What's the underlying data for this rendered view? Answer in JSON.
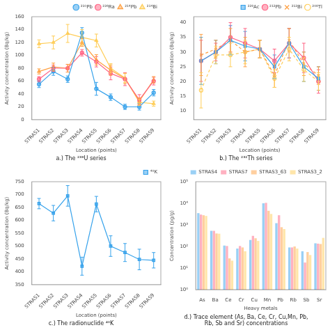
{
  "chart_data": [
    {
      "type": "line",
      "title": "a.) The ²³⁸U series",
      "xlabel": "Location (points)",
      "ylabel": "Activity concentration (Bq/kg)",
      "categories": [
        "STRAS1",
        "STRAS2",
        "STRAS3",
        "STRAS4",
        "STRAS5",
        "STRAS6",
        "STRAS7",
        "STRAS8",
        "STRAS9"
      ],
      "ylim": [
        0,
        160
      ],
      "yticks": [
        0,
        20,
        40,
        60,
        80,
        100,
        120,
        140,
        160
      ],
      "grid": false,
      "legend": "upper right",
      "series": [
        {
          "name": "²¹⁰Pb",
          "values": [
            55,
            75,
            63,
            135,
            48,
            35,
            20,
            20,
            42
          ],
          "errors": [
            5,
            6,
            5,
            8,
            10,
            5,
            4,
            5,
            5
          ],
          "marker": "circle",
          "line_style": "solid"
        },
        {
          "name": "²²⁶Ra",
          "values": [
            63,
            80,
            80,
            104,
            90,
            72,
            63,
            31,
            60
          ],
          "errors": [
            4,
            5,
            6,
            5,
            8,
            10,
            10,
            8,
            6
          ],
          "marker": "circle",
          "line_style": "solid"
        },
        {
          "name": "²¹⁴Pb",
          "values": [
            75,
            82,
            80,
            120,
            93,
            77,
            64,
            29,
            62
          ],
          "errors": [
            4,
            6,
            6,
            6,
            8,
            8,
            8,
            5,
            5
          ],
          "marker": "triangle",
          "line_style": "solid"
        },
        {
          "name": "²¹⁴Bi",
          "values": [
            118,
            120,
            134,
            128,
            123,
            80,
            65,
            27,
            25
          ],
          "errors": [
            6,
            10,
            14,
            12,
            10,
            7,
            7,
            5,
            4
          ],
          "marker": "triangle",
          "line_style": "solid"
        }
      ]
    },
    {
      "type": "line",
      "title": "b.) The ²³²Th series",
      "xlabel": "Location (points)",
      "ylabel": "Activity concentration (Bq/kg)",
      "categories": [
        "STRAS1",
        "STRAS2",
        "STRAS3",
        "STRAS4",
        "STRAS5",
        "STRAS6",
        "STRAS7",
        "STRAS8",
        "STRAS9"
      ],
      "ylim": [
        7,
        42
      ],
      "yticks": [
        10,
        15,
        20,
        25,
        30,
        35,
        40
      ],
      "grid": false,
      "legend": "upper right",
      "series": [
        {
          "name": "²²⁸Ac",
          "values": [
            27,
            30,
            34,
            32,
            31,
            25,
            33,
            25,
            21
          ],
          "errors": [
            8,
            4,
            5,
            5,
            3,
            4,
            5,
            5,
            4
          ],
          "marker": "square",
          "line_style": "solid"
        },
        {
          "name": "²¹²Pb",
          "values": [
            27,
            30,
            35,
            33,
            31,
            27,
            33,
            28,
            20
          ],
          "errors": [
            7,
            3,
            5,
            5,
            3,
            4,
            5,
            5,
            4
          ],
          "marker": "circle",
          "line_style": "solid"
        },
        {
          "name": "²¹²Bi",
          "values": [
            29,
            31,
            34,
            30,
            31,
            22,
            34,
            26,
            22
          ],
          "errors": [
            7,
            3,
            4,
            5,
            3,
            4,
            4,
            4,
            3
          ],
          "marker": "x",
          "line_style": "dashed"
        },
        {
          "name": "²⁰⁸Tl",
          "values": [
            17,
            29,
            29,
            30,
            31,
            21,
            31,
            24,
            20
          ],
          "errors": [
            6,
            3,
            4,
            4,
            3,
            3,
            4,
            4,
            3
          ],
          "marker": "open_circle",
          "line_style": "dashed"
        }
      ]
    },
    {
      "type": "line",
      "title": "c.) The radionuclide ⁴⁰K",
      "xlabel": "Location (points)",
      "ylabel": "Activity concentration (Bq/kg)",
      "categories": [
        "STRAS1",
        "STRAS2",
        "STRAS3",
        "STRAS4",
        "STRAS5",
        "STRAS6",
        "STRAS7",
        "STRAS8",
        "STRAS9"
      ],
      "ylim": [
        350,
        750
      ],
      "yticks": [
        350,
        400,
        450,
        500,
        550,
        600,
        650,
        700,
        750
      ],
      "grid": false,
      "legend": "upper right",
      "series": [
        {
          "name": "⁴⁰K",
          "values": [
            665,
            628,
            695,
            422,
            663,
            500,
            475,
            448,
            445
          ],
          "errors": [
            20,
            30,
            40,
            35,
            30,
            40,
            35,
            40,
            30
          ],
          "marker": "square",
          "line_style": "solid"
        }
      ]
    },
    {
      "type": "bar",
      "title": "d.) Trace element (As, Ba, Ce, Cr, Cu,Mn, Pb,\nRb, Sb and Sr) concentrations",
      "xlabel": "Heavy metals",
      "ylabel": "Concentration (pg/g)",
      "categories": [
        "As",
        "Ba",
        "Ce",
        "Cr",
        "Cu",
        "Mn",
        "Pb",
        "Rb",
        "Sb",
        "Sr"
      ],
      "log": "y",
      "ylim": [
        1,
        100000
      ],
      "yticks": [
        {
          "value": 1,
          "label": "10⁰"
        },
        {
          "value": 10,
          "label": "10¹"
        },
        {
          "value": 100,
          "label": "10²"
        },
        {
          "value": 1000,
          "label": "10³"
        },
        {
          "value": 10000,
          "label": "10⁴"
        },
        {
          "value": 100000,
          "label": "10⁵"
        }
      ],
      "grid": false,
      "legend": "upper right",
      "series": [
        {
          "name": "STRAS4",
          "values": [
            3500,
            530,
            110,
            80,
            200,
            10000,
            1200,
            90,
            60,
            140
          ]
        },
        {
          "name": "STRAS7",
          "values": [
            3000,
            530,
            105,
            105,
            310,
            10500,
            2800,
            90,
            18,
            135
          ]
        },
        {
          "name": "STRAS3_63",
          "values": [
            2800,
            400,
            28,
            90,
            240,
            4500,
            780,
            100,
            55,
            130
          ]
        },
        {
          "name": "STRAS3_2",
          "values": [
            2600,
            390,
            22,
            60,
            180,
            3200,
            640,
            80,
            40,
            250
          ]
        }
      ]
    }
  ]
}
